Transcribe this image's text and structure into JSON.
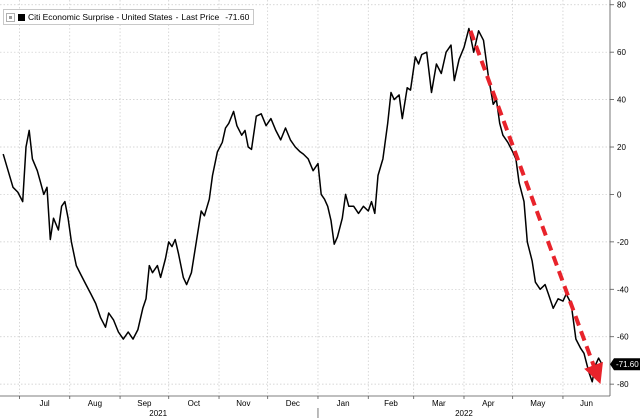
{
  "chart_data": {
    "type": "line",
    "series": [
      {
        "name": "Citi Economic Surprise - United States",
        "color": "#000000",
        "points": [
          [
            "2021-06-21",
            17
          ],
          [
            "2021-06-24",
            10
          ],
          [
            "2021-06-27",
            3
          ],
          [
            "2021-06-30",
            1
          ],
          [
            "2021-07-03",
            -3
          ],
          [
            "2021-07-05",
            20
          ],
          [
            "2021-07-07",
            27
          ],
          [
            "2021-07-09",
            15
          ],
          [
            "2021-07-12",
            10
          ],
          [
            "2021-07-14",
            5
          ],
          [
            "2021-07-16",
            0
          ],
          [
            "2021-07-18",
            3
          ],
          [
            "2021-07-20",
            -19
          ],
          [
            "2021-07-22",
            -10
          ],
          [
            "2021-07-25",
            -15
          ],
          [
            "2021-07-27",
            -5
          ],
          [
            "2021-07-29",
            -3
          ],
          [
            "2021-07-31",
            -10
          ],
          [
            "2021-08-02",
            -20
          ],
          [
            "2021-08-05",
            -30
          ],
          [
            "2021-08-08",
            -34
          ],
          [
            "2021-08-11",
            -38
          ],
          [
            "2021-08-14",
            -42
          ],
          [
            "2021-08-17",
            -46
          ],
          [
            "2021-08-20",
            -52
          ],
          [
            "2021-08-23",
            -56
          ],
          [
            "2021-08-25",
            -50
          ],
          [
            "2021-08-28",
            -53
          ],
          [
            "2021-08-31",
            -58
          ],
          [
            "2021-09-03",
            -61
          ],
          [
            "2021-09-06",
            -58
          ],
          [
            "2021-09-09",
            -61
          ],
          [
            "2021-09-12",
            -57
          ],
          [
            "2021-09-15",
            -48
          ],
          [
            "2021-09-17",
            -44
          ],
          [
            "2021-09-19",
            -30
          ],
          [
            "2021-09-21",
            -33
          ],
          [
            "2021-09-24",
            -30
          ],
          [
            "2021-09-26",
            -35
          ],
          [
            "2021-09-29",
            -27
          ],
          [
            "2021-10-01",
            -20
          ],
          [
            "2021-10-03",
            -22
          ],
          [
            "2021-10-05",
            -19
          ],
          [
            "2021-10-07",
            -25
          ],
          [
            "2021-10-10",
            -35
          ],
          [
            "2021-10-12",
            -38
          ],
          [
            "2021-10-15",
            -33
          ],
          [
            "2021-10-18",
            -20
          ],
          [
            "2021-10-21",
            -7
          ],
          [
            "2021-10-23",
            -9
          ],
          [
            "2021-10-26",
            -2
          ],
          [
            "2021-10-28",
            8
          ],
          [
            "2021-10-31",
            18
          ],
          [
            "2021-11-03",
            22
          ],
          [
            "2021-11-05",
            28
          ],
          [
            "2021-11-07",
            30
          ],
          [
            "2021-11-10",
            35
          ],
          [
            "2021-11-12",
            29
          ],
          [
            "2021-11-15",
            25
          ],
          [
            "2021-11-17",
            27
          ],
          [
            "2021-11-19",
            20
          ],
          [
            "2021-11-21",
            19
          ],
          [
            "2021-11-24",
            33
          ],
          [
            "2021-11-27",
            34
          ],
          [
            "2021-11-30",
            29
          ],
          [
            "2021-12-03",
            32
          ],
          [
            "2021-12-06",
            27
          ],
          [
            "2021-12-09",
            23
          ],
          [
            "2021-12-12",
            28
          ],
          [
            "2021-12-15",
            23
          ],
          [
            "2021-12-18",
            20
          ],
          [
            "2021-12-21",
            18
          ],
          [
            "2021-12-23",
            17
          ],
          [
            "2021-12-26",
            15
          ],
          [
            "2021-12-29",
            10
          ],
          [
            "2022-01-01",
            13
          ],
          [
            "2022-01-03",
            0
          ],
          [
            "2022-01-05",
            -2
          ],
          [
            "2022-01-07",
            -5
          ],
          [
            "2022-01-09",
            -11
          ],
          [
            "2022-01-11",
            -21
          ],
          [
            "2022-01-13",
            -18
          ],
          [
            "2022-01-16",
            -10
          ],
          [
            "2022-01-18",
            0
          ],
          [
            "2022-01-20",
            -5
          ],
          [
            "2022-01-23",
            -5
          ],
          [
            "2022-01-26",
            -8
          ],
          [
            "2022-01-29",
            -5
          ],
          [
            "2022-02-01",
            -7
          ],
          [
            "2022-02-03",
            -3
          ],
          [
            "2022-02-05",
            -8
          ],
          [
            "2022-02-07",
            8
          ],
          [
            "2022-02-10",
            15
          ],
          [
            "2022-02-13",
            30
          ],
          [
            "2022-02-15",
            43
          ],
          [
            "2022-02-17",
            40
          ],
          [
            "2022-02-20",
            42
          ],
          [
            "2022-02-22",
            32
          ],
          [
            "2022-02-25",
            45
          ],
          [
            "2022-02-27",
            44
          ],
          [
            "2022-03-02",
            58
          ],
          [
            "2022-03-04",
            55
          ],
          [
            "2022-03-06",
            59
          ],
          [
            "2022-03-09",
            60
          ],
          [
            "2022-03-12",
            43
          ],
          [
            "2022-03-15",
            55
          ],
          [
            "2022-03-18",
            51
          ],
          [
            "2022-03-21",
            60
          ],
          [
            "2022-03-24",
            63
          ],
          [
            "2022-03-26",
            48
          ],
          [
            "2022-03-29",
            57
          ],
          [
            "2022-04-01",
            62
          ],
          [
            "2022-04-04",
            70
          ],
          [
            "2022-04-07",
            60
          ],
          [
            "2022-04-10",
            69
          ],
          [
            "2022-04-13",
            65
          ],
          [
            "2022-04-16",
            50
          ],
          [
            "2022-04-19",
            38
          ],
          [
            "2022-04-21",
            40
          ],
          [
            "2022-04-23",
            30
          ],
          [
            "2022-04-25",
            25
          ],
          [
            "2022-04-28",
            22
          ],
          [
            "2022-05-01",
            18
          ],
          [
            "2022-05-03",
            15
          ],
          [
            "2022-05-05",
            5
          ],
          [
            "2022-05-08",
            -3
          ],
          [
            "2022-05-10",
            -20
          ],
          [
            "2022-05-13",
            -28
          ],
          [
            "2022-05-15",
            -37
          ],
          [
            "2022-05-18",
            -40
          ],
          [
            "2022-05-21",
            -38
          ],
          [
            "2022-05-23",
            -42
          ],
          [
            "2022-05-26",
            -48
          ],
          [
            "2022-05-29",
            -44
          ],
          [
            "2022-06-01",
            -45
          ],
          [
            "2022-06-03",
            -42
          ],
          [
            "2022-06-06",
            -46
          ],
          [
            "2022-06-09",
            -61
          ],
          [
            "2022-06-12",
            -65
          ],
          [
            "2022-06-14",
            -67
          ],
          [
            "2022-06-17",
            -75
          ],
          [
            "2022-06-19",
            -79
          ],
          [
            "2022-06-21",
            -72
          ],
          [
            "2022-06-23",
            -69
          ],
          [
            "2022-06-25",
            -71.6
          ]
        ]
      }
    ],
    "legend": {
      "name": "Citi Economic Surprise - United States",
      "price_label": "Last Price",
      "price_value": "-71.60"
    },
    "last_value_label": "-71.60",
    "y_ticks": [
      80,
      60,
      40,
      20,
      0,
      -20,
      -40,
      -60,
      -80
    ],
    "ylim": [
      -85,
      82
    ],
    "months": [
      {
        "label": "Jul",
        "date": "2021-07-01"
      },
      {
        "label": "Aug",
        "date": "2021-08-01"
      },
      {
        "label": "Sep",
        "date": "2021-09-01"
      },
      {
        "label": "Oct",
        "date": "2021-10-01"
      },
      {
        "label": "Nov",
        "date": "2021-11-01"
      },
      {
        "label": "Dec",
        "date": "2021-12-01"
      },
      {
        "label": "Jan",
        "date": "2022-01-01"
      },
      {
        "label": "Feb",
        "date": "2022-02-01"
      },
      {
        "label": "Mar",
        "date": "2022-03-01"
      },
      {
        "label": "Apr",
        "date": "2022-04-01"
      },
      {
        "label": "May",
        "date": "2022-05-01"
      },
      {
        "label": "Jun",
        "date": "2022-06-01"
      }
    ],
    "years": [
      {
        "label": "2021",
        "start": "2021-06-19",
        "end": "2021-12-31"
      },
      {
        "label": "2022",
        "start": "2022-01-01",
        "end": "2022-06-30"
      }
    ],
    "xlim": [
      "2021-06-19",
      "2022-06-30"
    ],
    "trend_arrow": {
      "color": "#e8232b",
      "from": [
        "2022-04-05",
        69
      ],
      "to": [
        "2022-06-22",
        -76
      ]
    },
    "grid": true,
    "legend_position": "top-left",
    "y_axis_side": "right"
  }
}
